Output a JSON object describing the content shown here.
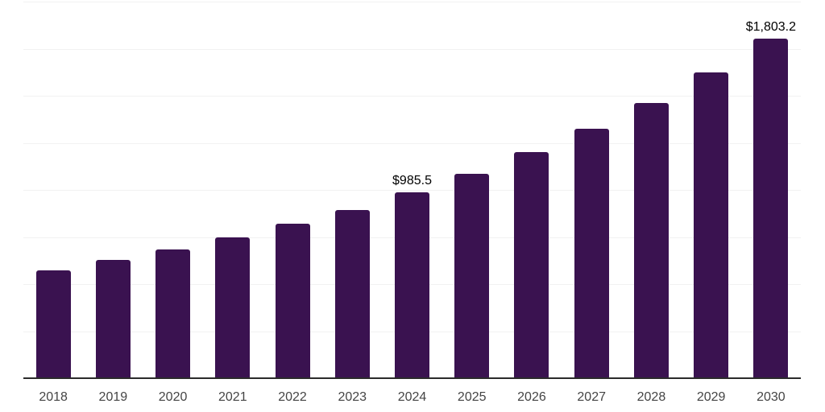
{
  "chart": {
    "background_color": "#ffffff",
    "bar_color": "#3a1250",
    "axis_line_color": "#2b2b2b",
    "gridline_color": "#f2f2f2",
    "tick_label_color": "#444444",
    "value_label_color": "#000000"
  },
  "chart_data": {
    "type": "bar",
    "title": "",
    "xlabel": "",
    "ylabel": "",
    "ylim": [
      0,
      2000
    ],
    "gridline_step": 250,
    "grid": "horizontal",
    "legend": "none",
    "categories": [
      "2018",
      "2019",
      "2020",
      "2021",
      "2022",
      "2023",
      "2024",
      "2025",
      "2026",
      "2027",
      "2028",
      "2029",
      "2030"
    ],
    "values": [
      572,
      627,
      682,
      746,
      819,
      894,
      985.5,
      1086,
      1199,
      1324,
      1462,
      1625,
      1803.2
    ],
    "data_labels": [
      {
        "category": "2024",
        "text": "$985.5"
      },
      {
        "category": "2030",
        "text": "$1,803.2"
      }
    ]
  }
}
